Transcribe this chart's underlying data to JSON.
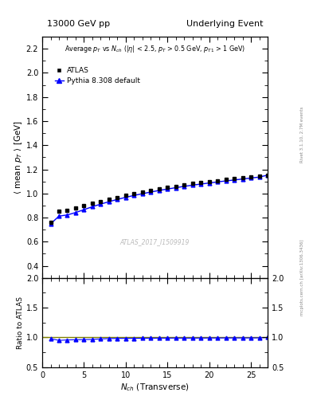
{
  "title_left": "13000 GeV pp",
  "title_right": "Underlying Event",
  "ylabel_main": "$\\langle$ mean $p_T$ $\\rangle$ [GeV]",
  "ylabel_ratio": "Ratio to ATLAS",
  "xlabel": "$N_{ch}$ (Transverse)",
  "watermark": "ATLAS_2017_I1509919",
  "right_label": "mcplots.cern.ch [arXiv:1306.3436]",
  "rivet_label": "Rivet 3.1.10, 2.7M events",
  "atlas_x": [
    1,
    2,
    3,
    4,
    5,
    6,
    7,
    8,
    9,
    10,
    11,
    12,
    13,
    14,
    15,
    16,
    17,
    18,
    19,
    20,
    21,
    22,
    23,
    24,
    25,
    26,
    27
  ],
  "atlas_y": [
    0.762,
    0.855,
    0.858,
    0.877,
    0.898,
    0.92,
    0.935,
    0.95,
    0.968,
    0.984,
    1.0,
    1.012,
    1.025,
    1.038,
    1.05,
    1.06,
    1.072,
    1.082,
    1.09,
    1.098,
    1.107,
    1.115,
    1.122,
    1.13,
    1.138,
    1.145,
    1.152
  ],
  "atlas_yerr": [
    0.01,
    0.008,
    0.007,
    0.006,
    0.005,
    0.005,
    0.005,
    0.004,
    0.004,
    0.004,
    0.004,
    0.004,
    0.004,
    0.004,
    0.004,
    0.004,
    0.004,
    0.004,
    0.004,
    0.004,
    0.004,
    0.004,
    0.004,
    0.004,
    0.004,
    0.004,
    0.004
  ],
  "pythia_x": [
    1,
    2,
    3,
    4,
    5,
    6,
    7,
    8,
    9,
    10,
    11,
    12,
    13,
    14,
    15,
    16,
    17,
    18,
    19,
    20,
    21,
    22,
    23,
    24,
    25,
    26,
    27
  ],
  "pythia_y": [
    0.748,
    0.812,
    0.822,
    0.842,
    0.866,
    0.89,
    0.912,
    0.932,
    0.951,
    0.968,
    0.984,
    0.998,
    1.012,
    1.025,
    1.037,
    1.048,
    1.059,
    1.069,
    1.078,
    1.087,
    1.096,
    1.104,
    1.112,
    1.12,
    1.128,
    1.136,
    1.152
  ],
  "ratio_pythia": [
    0.981,
    0.95,
    0.958,
    0.961,
    0.964,
    0.967,
    0.975,
    0.981,
    0.983,
    0.984,
    0.984,
    0.986,
    0.987,
    0.988,
    0.988,
    0.989,
    0.988,
    0.988,
    0.989,
    0.99,
    0.99,
    0.991,
    0.991,
    0.991,
    0.991,
    0.992,
    1.0
  ],
  "ylim_main": [
    0.3,
    2.3
  ],
  "ylim_ratio": [
    0.5,
    2.0
  ],
  "xlim": [
    0,
    27
  ],
  "bg_color": "#ffffff",
  "atlas_color": "#000000",
  "pythia_color": "#0000ff",
  "ratio_line_color": "#808000"
}
